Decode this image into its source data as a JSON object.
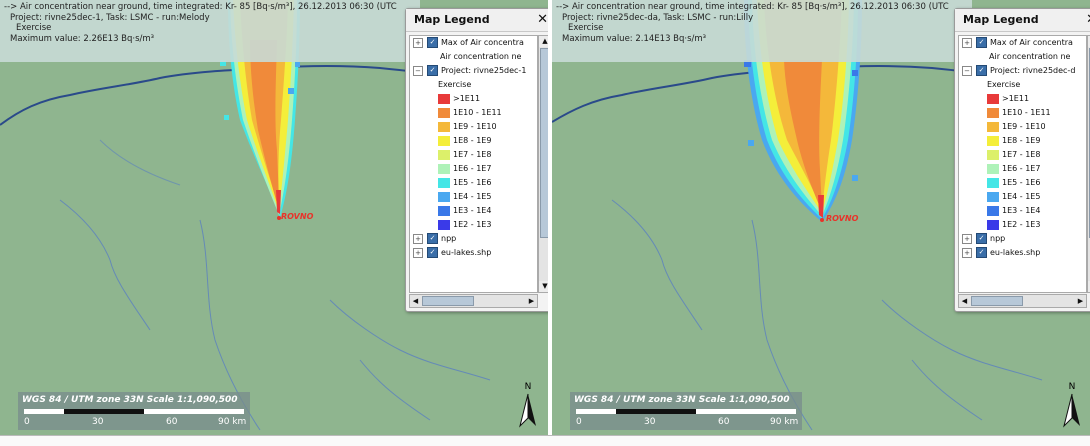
{
  "legend_colors": [
    "#e83a3a",
    "#f08a3a",
    "#f4b83a",
    "#f4ee3a",
    "#dcf06a",
    "#aef2b8",
    "#44e6e6",
    "#4aa8f0",
    "#3a78e8",
    "#3a3ae8"
  ],
  "legend_labels": [
    ">1E11",
    "1E10 - 1E11",
    "1E9 - 1E10",
    "1E8 - 1E9",
    "1E7 - 1E8",
    "1E6 - 1E7",
    "1E5 - 1E6",
    "1E4 - 1E5",
    "1E3 - 1E4",
    "1E2 - 1E3"
  ],
  "panels": [
    {
      "info_title": "--> Air concentration near ground, time integrated: Kr- 85 [Bq·s/m³], 26.12.2013 06:30 (UTC",
      "info_project": "Project: rivne25dec-1, Task: LSMC - run:Melody",
      "info_exercise": "Exercise",
      "info_max": "Maximum value: 2.26E13 Bq·s/m³",
      "legend_title": "Map Legend",
      "legend_close": "✕",
      "layer_max": "Max of Air concentra",
      "layer_air": "Air concentration ne",
      "layer_project": "Project: rivne25dec-1",
      "layer_exercise": "Exercise",
      "layer_npp": "npp",
      "layer_lakes": "eu-lakes.shp",
      "city": "ROVNO",
      "scale_title": "WGS 84 / UTM zone 33N    Scale 1:1,090,500",
      "ticks": [
        "0",
        "30",
        "60",
        "90 km"
      ],
      "north": "N"
    },
    {
      "info_title": "--> Air concentration near ground, time integrated: Kr- 85 [Bq·s/m³], 26.12.2013 06:30 (UTC",
      "info_project": "Project: rivne25dec-da, Task: LSMC - run:Lilly",
      "info_exercise": "Exercise",
      "info_max": "Maximum value: 2.14E13 Bq·s/m³",
      "legend_title": "Map Legend",
      "legend_close": "✕",
      "layer_max": "Max of Air concentra",
      "layer_air": "Air concentration ne",
      "layer_project": "Project: rivne25dec-d",
      "layer_exercise": "Exercise",
      "layer_npp": "npp",
      "layer_lakes": "eu-lakes.shp",
      "city": "ROVNO",
      "scale_title": "WGS 84 / UTM zone 33N    Scale 1:1,090,500",
      "ticks": [
        "0",
        "30",
        "60",
        "90 km"
      ],
      "north": "N"
    }
  ]
}
